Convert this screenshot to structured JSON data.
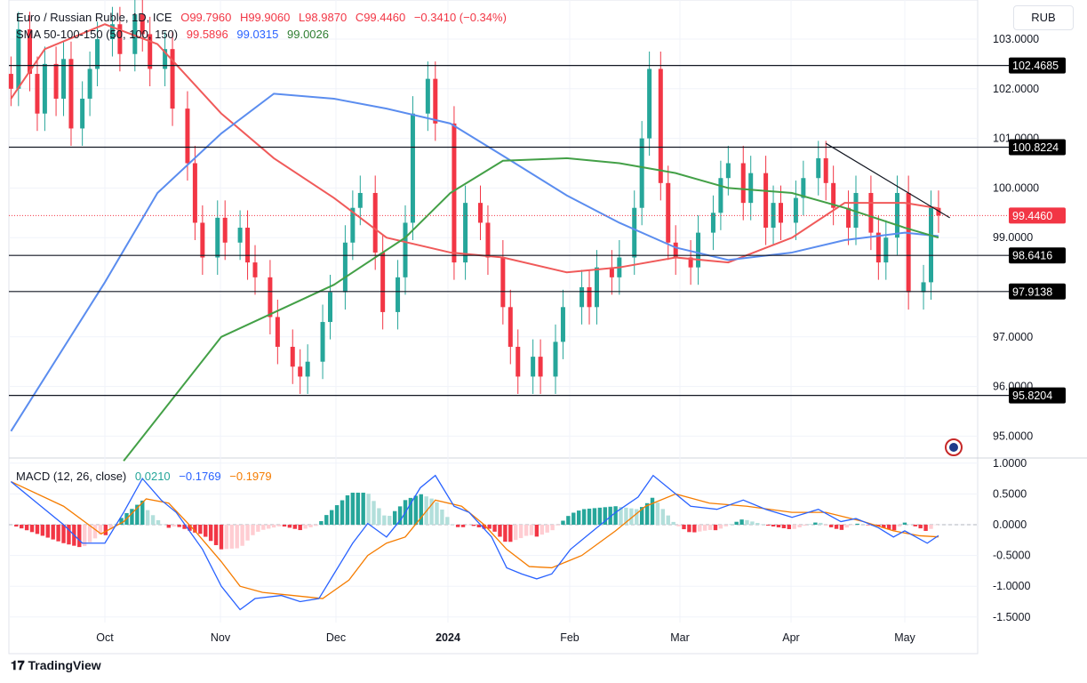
{
  "legend": {
    "symbol": "Euro / Russian Ruble, 1D, ICE",
    "open": "O99.7960",
    "high": "H99.9060",
    "low": "L98.9870",
    "close": "C99.4460",
    "change": "−0.3410 (−0.34%)",
    "sma_title": "SMA 50-100-150 (50, 100, 150)",
    "sma50": "99.5896",
    "sma100": "99.0315",
    "sma150": "99.0026",
    "macd_title": "MACD (12, 26, close)",
    "macd_hist": "0.0210",
    "macd": "−0.1769",
    "macd_signal": "−0.1979"
  },
  "currency": "RUB",
  "brand": "TradingView",
  "colors": {
    "up": "#26a69a",
    "down": "#f23645",
    "sma50": "#f05a5a",
    "sma100": "#5b8def",
    "sma150": "#43a047",
    "macd": "#2962ff",
    "signal": "#f57c00"
  },
  "chart_data": [
    {
      "type": "candlestick",
      "title": "Euro / Russian Ruble, 1D, ICE",
      "ylim": [
        94.6,
        103.4
      ],
      "y_ticks": [
        "103.0000",
        "102.0000",
        "101.0000",
        "100.0000",
        "99.0000",
        "97.0000",
        "96.0000",
        "95.0000"
      ],
      "x_ticks": [
        "Oct",
        "Nov",
        "Dec",
        "2024",
        "Feb",
        "Mar",
        "Apr",
        "May"
      ],
      "last_price": "99.4460",
      "levels": [
        "102.4685",
        "100.8224",
        "98.6416",
        "97.9138",
        "95.8204"
      ],
      "trendline": [
        [
          "2024-04-10",
          100.9
        ],
        [
          "2024-05-13",
          99.4
        ]
      ],
      "closes": [
        [
          "2023-09-06",
          102.0
        ],
        [
          "2023-09-08",
          103.2
        ],
        [
          "2023-09-11",
          102.3
        ],
        [
          "2023-09-13",
          101.5
        ],
        [
          "2023-09-15",
          102.5
        ],
        [
          "2023-09-18",
          101.8
        ],
        [
          "2023-09-20",
          102.6
        ],
        [
          "2023-09-22",
          101.2
        ],
        [
          "2023-09-25",
          101.8
        ],
        [
          "2023-09-27",
          102.4
        ],
        [
          "2023-09-29",
          103.0
        ],
        [
          "2023-10-03",
          103.3
        ],
        [
          "2023-10-05",
          102.7
        ],
        [
          "2023-10-09",
          103.5
        ],
        [
          "2023-10-11",
          103.1
        ],
        [
          "2023-10-13",
          102.4
        ],
        [
          "2023-10-17",
          102.8
        ],
        [
          "2023-10-19",
          101.6
        ],
        [
          "2023-10-23",
          100.5
        ],
        [
          "2023-10-25",
          99.3
        ],
        [
          "2023-10-27",
          98.6
        ],
        [
          "2023-10-31",
          99.4
        ],
        [
          "2023-11-02",
          98.9
        ],
        [
          "2023-11-06",
          99.2
        ],
        [
          "2023-11-08",
          98.5
        ],
        [
          "2023-11-10",
          98.2
        ],
        [
          "2023-11-14",
          97.4
        ],
        [
          "2023-11-16",
          96.8
        ],
        [
          "2023-11-20",
          96.4
        ],
        [
          "2023-11-22",
          96.2
        ],
        [
          "2023-11-24",
          96.5
        ],
        [
          "2023-11-28",
          97.3
        ],
        [
          "2023-11-30",
          97.9
        ],
        [
          "2023-12-04",
          98.9
        ],
        [
          "2023-12-06",
          99.6
        ],
        [
          "2023-12-08",
          99.9
        ],
        [
          "2023-12-12",
          98.7
        ],
        [
          "2023-12-14",
          97.5
        ],
        [
          "2023-12-18",
          98.2
        ],
        [
          "2023-12-20",
          99.3
        ],
        [
          "2023-12-22",
          101.5
        ],
        [
          "2023-12-26",
          102.2
        ],
        [
          "2023-12-28",
          101.3
        ],
        [
          "2024-01-02",
          98.5
        ],
        [
          "2024-01-05",
          99.7
        ],
        [
          "2024-01-09",
          99.3
        ],
        [
          "2024-01-11",
          98.6
        ],
        [
          "2024-01-15",
          97.6
        ],
        [
          "2024-01-17",
          96.8
        ],
        [
          "2024-01-19",
          96.2
        ],
        [
          "2024-01-23",
          96.6
        ],
        [
          "2024-01-25",
          96.2
        ],
        [
          "2024-01-29",
          96.9
        ],
        [
          "2024-01-31",
          97.6
        ],
        [
          "2024-02-05",
          98.0
        ],
        [
          "2024-02-07",
          97.6
        ],
        [
          "2024-02-09",
          98.4
        ],
        [
          "2024-02-13",
          98.2
        ],
        [
          "2024-02-15",
          98.6
        ],
        [
          "2024-02-19",
          99.6
        ],
        [
          "2024-02-21",
          101.0
        ],
        [
          "2024-02-23",
          102.4
        ],
        [
          "2024-02-26",
          100.1
        ],
        [
          "2024-02-28",
          98.9
        ],
        [
          "2024-03-01",
          98.6
        ],
        [
          "2024-03-05",
          98.4
        ],
        [
          "2024-03-07",
          99.1
        ],
        [
          "2024-03-11",
          99.5
        ],
        [
          "2024-03-13",
          100.2
        ],
        [
          "2024-03-15",
          100.5
        ],
        [
          "2024-03-19",
          99.7
        ],
        [
          "2024-03-21",
          100.3
        ],
        [
          "2024-03-25",
          99.2
        ],
        [
          "2024-03-27",
          99.7
        ],
        [
          "2024-03-29",
          99.3
        ],
        [
          "2024-04-02",
          99.8
        ],
        [
          "2024-04-04",
          100.2
        ],
        [
          "2024-04-08",
          100.6
        ],
        [
          "2024-04-10",
          100.1
        ],
        [
          "2024-04-12",
          99.6
        ],
        [
          "2024-04-16",
          99.2
        ],
        [
          "2024-04-18",
          99.9
        ],
        [
          "2024-04-22",
          99.1
        ],
        [
          "2024-04-24",
          98.5
        ],
        [
          "2024-04-26",
          99.0
        ],
        [
          "2024-04-29",
          99.9
        ],
        [
          "2024-05-02",
          97.9
        ],
        [
          "2024-05-06",
          98.1
        ],
        [
          "2024-05-08",
          99.6
        ],
        [
          "2024-05-10",
          99.446
        ]
      ],
      "series": [
        {
          "name": "SMA 50",
          "values": [
            [
              "2023-09-06",
              101.8
            ],
            [
              "2023-09-15",
              102.8
            ],
            [
              "2023-10-01",
              103.3
            ],
            [
              "2023-10-15",
              102.9
            ],
            [
              "2023-11-01",
              101.5
            ],
            [
              "2023-11-15",
              100.6
            ],
            [
              "2023-12-01",
              99.8
            ],
            [
              "2023-12-15",
              99.0
            ],
            [
              "2024-01-01",
              98.7
            ],
            [
              "2024-01-15",
              98.6
            ],
            [
              "2024-02-01",
              98.3
            ],
            [
              "2024-02-15",
              98.4
            ],
            [
              "2024-03-01",
              98.6
            ],
            [
              "2024-03-15",
              98.5
            ],
            [
              "2024-04-01",
              99.0
            ],
            [
              "2024-04-15",
              99.7
            ],
            [
              "2024-05-01",
              99.7
            ],
            [
              "2024-05-10",
              99.59
            ]
          ]
        },
        {
          "name": "SMA 100",
          "values": [
            [
              "2023-09-06",
              95.1
            ],
            [
              "2023-10-01",
              98.1
            ],
            [
              "2023-10-15",
              99.9
            ],
            [
              "2023-11-01",
              101.1
            ],
            [
              "2023-11-15",
              101.9
            ],
            [
              "2023-12-01",
              101.8
            ],
            [
              "2023-12-15",
              101.6
            ],
            [
              "2024-01-01",
              101.3
            ],
            [
              "2024-01-15",
              100.65
            ],
            [
              "2024-02-01",
              99.85
            ],
            [
              "2024-02-15",
              99.3
            ],
            [
              "2024-03-01",
              98.8
            ],
            [
              "2024-03-15",
              98.55
            ],
            [
              "2024-04-01",
              98.7
            ],
            [
              "2024-04-15",
              98.95
            ],
            [
              "2024-05-01",
              99.1
            ],
            [
              "2024-05-10",
              99.03
            ]
          ]
        },
        {
          "name": "SMA 150",
          "values": [
            [
              "2023-10-06",
              94.5
            ],
            [
              "2023-11-01",
              97.0
            ],
            [
              "2023-12-01",
              98.05
            ],
            [
              "2023-12-20",
              99.0
            ],
            [
              "2024-01-01",
              99.9
            ],
            [
              "2024-01-15",
              100.55
            ],
            [
              "2024-02-01",
              100.6
            ],
            [
              "2024-02-15",
              100.5
            ],
            [
              "2024-03-01",
              100.3
            ],
            [
              "2024-03-15",
              100.0
            ],
            [
              "2024-04-01",
              99.9
            ],
            [
              "2024-04-15",
              99.6
            ],
            [
              "2024-05-01",
              99.2
            ],
            [
              "2024-05-10",
              99.0
            ]
          ]
        }
      ]
    },
    {
      "type": "line",
      "title": "MACD (12, 26, close)",
      "ylim": [
        -1.6,
        1.05
      ],
      "y_ticks": [
        "1.0000",
        "0.5000",
        "0.0000",
        "-0.5000",
        "-1.0000",
        "-1.5000"
      ],
      "series": [
        {
          "name": "MACD",
          "values": [
            [
              "2023-09-06",
              0.7
            ],
            [
              "2023-09-12",
              0.4
            ],
            [
              "2023-09-20",
              0.0
            ],
            [
              "2023-09-25",
              -0.3
            ],
            [
              "2023-10-01",
              -0.3
            ],
            [
              "2023-10-06",
              0.2
            ],
            [
              "2023-10-11",
              0.75
            ],
            [
              "2023-10-16",
              0.4
            ],
            [
              "2023-10-20",
              0.2
            ],
            [
              "2023-10-27",
              -0.4
            ],
            [
              "2023-11-01",
              -1.0
            ],
            [
              "2023-11-06",
              -1.38
            ],
            [
              "2023-11-10",
              -1.2
            ],
            [
              "2023-11-17",
              -1.15
            ],
            [
              "2023-11-22",
              -1.25
            ],
            [
              "2023-11-27",
              -1.2
            ],
            [
              "2023-12-01",
              -0.8
            ],
            [
              "2023-12-06",
              -0.3
            ],
            [
              "2023-12-10",
              0.02
            ],
            [
              "2023-12-15",
              -0.2
            ],
            [
              "2023-12-19",
              0.1
            ],
            [
              "2023-12-24",
              0.6
            ],
            [
              "2023-12-28",
              0.8
            ],
            [
              "2024-01-02",
              0.3
            ],
            [
              "2024-01-06",
              0.2
            ],
            [
              "2024-01-12",
              -0.2
            ],
            [
              "2024-01-16",
              -0.7
            ],
            [
              "2024-01-20",
              -0.8
            ],
            [
              "2024-01-24",
              -0.88
            ],
            [
              "2024-01-28",
              -0.8
            ],
            [
              "2024-02-02",
              -0.4
            ],
            [
              "2024-02-08",
              -0.1
            ],
            [
              "2024-02-14",
              0.2
            ],
            [
              "2024-02-20",
              0.45
            ],
            [
              "2024-02-24",
              0.8
            ],
            [
              "2024-03-01",
              0.5
            ],
            [
              "2024-03-05",
              0.3
            ],
            [
              "2024-03-12",
              0.25
            ],
            [
              "2024-03-19",
              0.4
            ],
            [
              "2024-03-25",
              0.25
            ],
            [
              "2024-04-01",
              0.12
            ],
            [
              "2024-04-08",
              0.25
            ],
            [
              "2024-04-14",
              0.05
            ],
            [
              "2024-04-18",
              0.1
            ],
            [
              "2024-04-24",
              -0.05
            ],
            [
              "2024-04-28",
              -0.2
            ],
            [
              "2024-05-01",
              -0.1
            ],
            [
              "2024-05-07",
              -0.3
            ],
            [
              "2024-05-10",
              -0.1769
            ]
          ]
        },
        {
          "name": "Signal",
          "values": [
            [
              "2023-09-06",
              0.7
            ],
            [
              "2023-09-20",
              0.3
            ],
            [
              "2023-09-30",
              -0.15
            ],
            [
              "2023-10-06",
              0.05
            ],
            [
              "2023-10-12",
              0.42
            ],
            [
              "2023-10-18",
              0.35
            ],
            [
              "2023-10-25",
              -0.1
            ],
            [
              "2023-11-01",
              -0.6
            ],
            [
              "2023-11-06",
              -1.0
            ],
            [
              "2023-11-12",
              -1.1
            ],
            [
              "2023-11-20",
              -1.15
            ],
            [
              "2023-11-28",
              -1.2
            ],
            [
              "2023-12-05",
              -0.9
            ],
            [
              "2023-12-10",
              -0.5
            ],
            [
              "2023-12-15",
              -0.3
            ],
            [
              "2023-12-20",
              -0.2
            ],
            [
              "2023-12-28",
              0.4
            ],
            [
              "2024-01-04",
              0.3
            ],
            [
              "2024-01-10",
              0.0
            ],
            [
              "2024-01-16",
              -0.4
            ],
            [
              "2024-01-22",
              -0.68
            ],
            [
              "2024-01-28",
              -0.7
            ],
            [
              "2024-02-05",
              -0.5
            ],
            [
              "2024-02-14",
              -0.1
            ],
            [
              "2024-02-22",
              0.3
            ],
            [
              "2024-03-01",
              0.5
            ],
            [
              "2024-03-10",
              0.35
            ],
            [
              "2024-03-20",
              0.3
            ],
            [
              "2024-04-01",
              0.2
            ],
            [
              "2024-04-10",
              0.2
            ],
            [
              "2024-04-20",
              0.05
            ],
            [
              "2024-04-28",
              -0.1
            ],
            [
              "2024-05-05",
              -0.18
            ],
            [
              "2024-05-10",
              -0.1979
            ]
          ]
        }
      ]
    }
  ]
}
